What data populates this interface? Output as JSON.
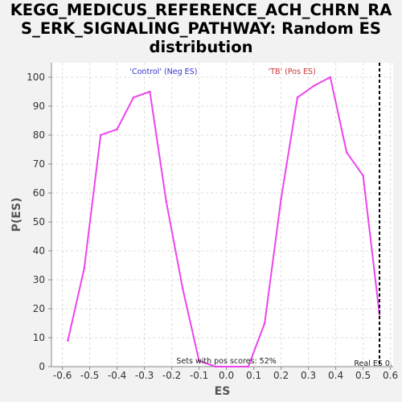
{
  "chart_data": {
    "type": "line",
    "title_lines": [
      "KEGG_MEDICUS_REFERENCE_ACH_CHRN_RA",
      "S_ERK_SIGNALING_PATHWAY: Random ES",
      "distribution"
    ],
    "xlabel": "ES",
    "ylabel": "P(ES)",
    "xlim": [
      -0.64,
      0.61
    ],
    "ylim": [
      0,
      105
    ],
    "x_ticks": [
      -0.6,
      -0.5,
      -0.4,
      -0.3,
      -0.2,
      -0.1,
      0.0,
      0.1,
      0.2,
      0.3,
      0.4,
      0.5,
      0.6
    ],
    "x_tick_labels": [
      "-0.6",
      "-0.5",
      "-0.4",
      "-0.3",
      "-0.2",
      "-0.1",
      "0.0",
      "0.1",
      "0.2",
      "0.3",
      "0.4",
      "0.5",
      "0.6"
    ],
    "y_ticks": [
      0,
      10,
      20,
      30,
      40,
      50,
      60,
      70,
      80,
      90,
      100
    ],
    "y_tick_labels": [
      "0",
      "10",
      "20",
      "30",
      "40",
      "50",
      "60",
      "70",
      "80",
      "90",
      "100"
    ],
    "grid": true,
    "series": [
      {
        "color": "#ee44ee",
        "x": [
          -0.58,
          -0.52,
          -0.46,
          -0.4,
          -0.34,
          -0.28,
          -0.22,
          -0.16,
          -0.1,
          -0.04,
          0.02,
          0.08,
          0.14,
          0.2,
          0.26,
          0.32,
          0.38,
          0.44,
          0.5,
          0.56
        ],
        "y": [
          9,
          34,
          80,
          82,
          93,
          95,
          57,
          27,
          2,
          0,
          0,
          0,
          15,
          58,
          93,
          97,
          100,
          74,
          66,
          18
        ]
      }
    ],
    "real_es": {
      "x": 0.56,
      "label": "Real ES 0.",
      "color": "#000000"
    },
    "annotations": {
      "neg_label": "'Control' (Neg ES)",
      "neg_color": "#3333cc",
      "pos_label": "'TB' (Pos ES)",
      "pos_color": "#cc3333",
      "pos_scores_text": "Sets with pos scores: 52%"
    }
  }
}
